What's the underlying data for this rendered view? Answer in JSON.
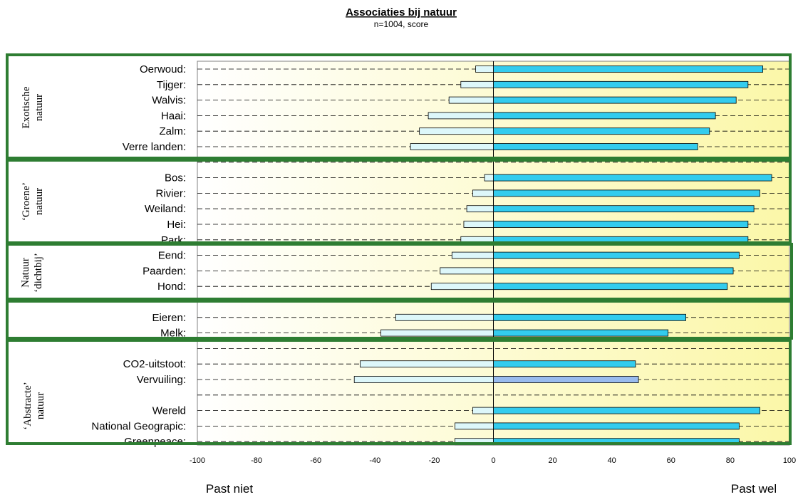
{
  "chart_data": {
    "type": "bar",
    "orientation": "horizontal",
    "title": "Associaties bij natuur",
    "subtitle": "n=1004, score",
    "xlim": [
      -100,
      100
    ],
    "xticks": [
      "-100",
      "-80",
      "-60",
      "-40",
      "-20",
      "0",
      "20",
      "40",
      "60",
      "80",
      "100"
    ],
    "left_label": "Past niet",
    "right_label": "Past wel",
    "grid": "dashed horizontal",
    "colors": {
      "positive": "#33CCEE",
      "positive_alt": "#99BBEE",
      "negative": "#DDF7FA",
      "frame": "#2E7D32"
    },
    "rows": [
      {
        "label": "Oerwoud:",
        "neg": -6,
        "pos": 91
      },
      {
        "label": "Tijger:",
        "neg": -11,
        "pos": 86
      },
      {
        "label": "Walvis:",
        "neg": -15,
        "pos": 82
      },
      {
        "label": "Haai:",
        "neg": -22,
        "pos": 75
      },
      {
        "label": "Zalm:",
        "neg": -25,
        "pos": 73
      },
      {
        "label": "Verre landen:",
        "neg": -28,
        "pos": 69
      },
      {
        "label": "",
        "neg": 0,
        "pos": 0
      },
      {
        "label": "Bos:",
        "neg": -3,
        "pos": 94
      },
      {
        "label": "Rivier:",
        "neg": -7,
        "pos": 90
      },
      {
        "label": "Weiland:",
        "neg": -9,
        "pos": 88
      },
      {
        "label": "Hei:",
        "neg": -10,
        "pos": 86
      },
      {
        "label": "Park:",
        "neg": -11,
        "pos": 86
      },
      {
        "label": "Eend:",
        "neg": -14,
        "pos": 83
      },
      {
        "label": "Paarden:",
        "neg": -18,
        "pos": 81
      },
      {
        "label": "Hond:",
        "neg": -21,
        "pos": 79
      },
      {
        "label": "",
        "neg": 0,
        "pos": 0
      },
      {
        "label": "Eieren:",
        "neg": -33,
        "pos": 65
      },
      {
        "label": "Melk:",
        "neg": -38,
        "pos": 59
      },
      {
        "label": "",
        "neg": 0,
        "pos": 0
      },
      {
        "label": "CO2-uitstoot:",
        "neg": -45,
        "pos": 48
      },
      {
        "label": "Vervuiling:",
        "neg": -47,
        "pos": 49,
        "alt_color": true
      },
      {
        "label": "",
        "neg": 0,
        "pos": 0
      },
      {
        "label": "Wereld",
        "neg": -7,
        "pos": 90
      },
      {
        "label": "National Geograpic:",
        "neg": -13,
        "pos": 83
      },
      {
        "label": "Greenpeace:",
        "neg": -13,
        "pos": 83
      }
    ],
    "groups": [
      {
        "lines": [
          "Exotische",
          "natuur"
        ]
      },
      {
        "lines": [
          "‘Groene’",
          "natuur"
        ]
      },
      {
        "lines": [
          "Natuur",
          "‘dichtbij’"
        ]
      },
      {
        "lines": []
      },
      {
        "lines": [
          "‘Abstracte’",
          "natuur"
        ]
      }
    ]
  }
}
